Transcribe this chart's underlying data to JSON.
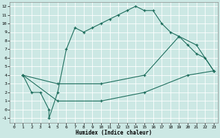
{
  "xlabel": "Humidex (Indice chaleur)",
  "bg_color": "#cce8e4",
  "line_color": "#1a6b5a",
  "xlim": [
    -0.5,
    23.5
  ],
  "ylim": [
    -1.5,
    12.5
  ],
  "xticks": [
    0,
    1,
    2,
    3,
    4,
    5,
    6,
    7,
    8,
    9,
    10,
    11,
    12,
    13,
    14,
    15,
    16,
    17,
    18,
    19,
    20,
    21,
    22,
    23
  ],
  "yticks": [
    -1,
    0,
    1,
    2,
    3,
    4,
    5,
    6,
    7,
    8,
    9,
    10,
    11,
    12
  ],
  "line1_x": [
    1,
    2,
    3,
    4,
    4,
    5,
    6,
    7,
    8,
    9,
    10,
    11,
    12,
    13,
    14,
    15,
    16,
    17,
    18,
    19,
    20,
    21,
    22,
    23
  ],
  "line1_y": [
    4,
    2,
    2,
    0,
    -1,
    2,
    7,
    9.5,
    9,
    9.5,
    10,
    10.5,
    11,
    11.5,
    12,
    11.5,
    11.5,
    10,
    9,
    8.5,
    7.5,
    6.5,
    6,
    4.5
  ],
  "line2_x": [
    1,
    5,
    10,
    15,
    19,
    21,
    23
  ],
  "line2_y": [
    4,
    3,
    3,
    4,
    8.5,
    7.5,
    4.5
  ],
  "line3_x": [
    1,
    5,
    10,
    15,
    20,
    23
  ],
  "line3_y": [
    4,
    1,
    1,
    2,
    4,
    4.5
  ]
}
